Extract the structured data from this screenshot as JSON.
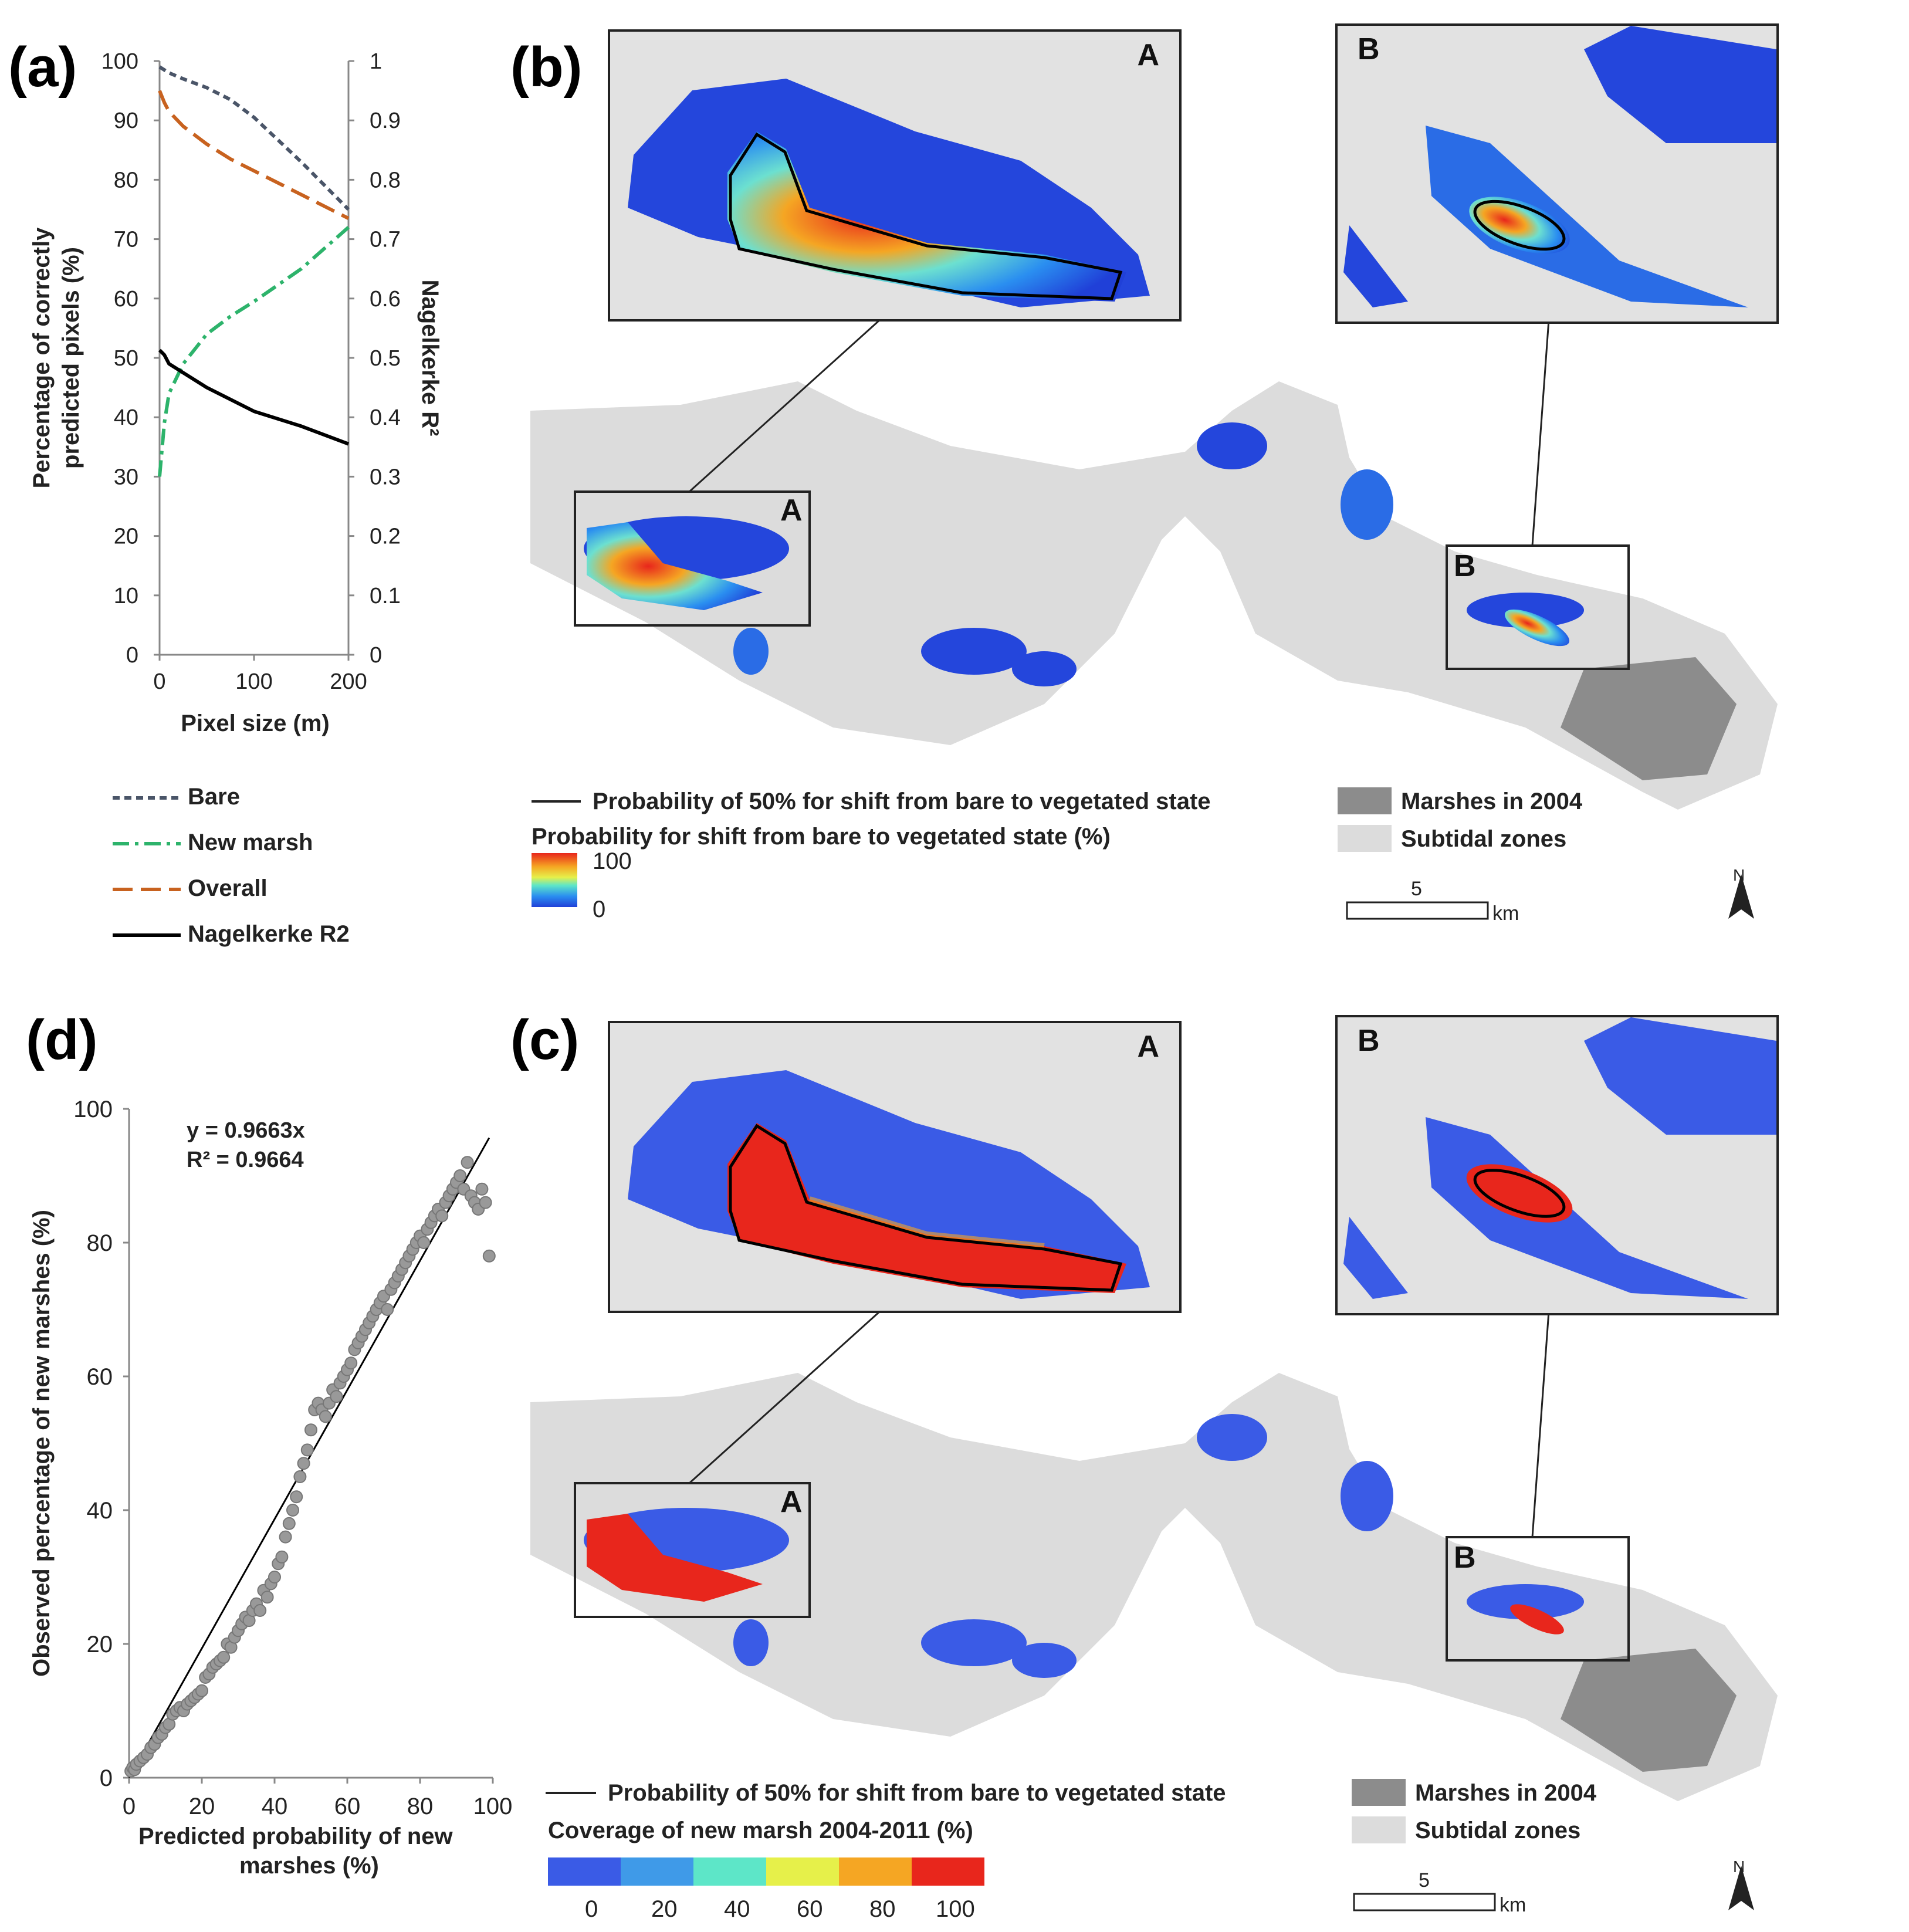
{
  "panel_a": {
    "letter": "(a)",
    "left_axis_label_line1": "Percentage of correctly",
    "left_axis_label_line2": "predicted pixels (%)",
    "right_axis_label": "Nagelkerke R²",
    "x_axis_label": "Pixel size (m)",
    "legend": [
      {
        "label": "Bare",
        "color": "#4a5568",
        "style": "dashed-short"
      },
      {
        "label": "New marsh",
        "color": "#2db36b",
        "style": "dash-dot"
      },
      {
        "label": "Overall",
        "color": "#c8621f",
        "style": "dashed-long"
      },
      {
        "label": "Nagelkerke R2",
        "color": "#000000",
        "style": "solid"
      }
    ]
  },
  "panel_b": {
    "letter": "(b)",
    "inset_a_label": "A",
    "inset_b_label": "B",
    "box_a_label": "A",
    "box_b_label": "B",
    "legend_line_label": "Probability of 50% for shift from bare to vegetated state",
    "legend_ramp_title": "Probability for shift from bare to vegetated state (%)",
    "ramp_max": "100",
    "ramp_min": "0",
    "marsh_label": "Marshes in 2004",
    "subtidal_label": "Subtidal zones",
    "scale_value": "5",
    "scale_unit": "km",
    "north": "N"
  },
  "panel_c": {
    "letter": "(c)",
    "inset_a_label": "A",
    "inset_b_label": "B",
    "box_a_label": "A",
    "box_b_label": "B",
    "legend_line_label": "Probability of 50% for shift from bare to vegetated state",
    "legend_ramp_title": "Coverage of new marsh 2004-2011 (%)",
    "class_labels": [
      "0",
      "20",
      "40",
      "60",
      "80",
      "100"
    ],
    "class_colors": [
      "#3a5be6",
      "#3f9ae8",
      "#5de6c8",
      "#e6f04a",
      "#f5a623",
      "#e8261c"
    ],
    "marsh_label": "Marshes in 2004",
    "subtidal_label": "Subtidal zones",
    "scale_value": "5",
    "scale_unit": "km",
    "north": "N"
  },
  "panel_d": {
    "letter": "(d)",
    "equation": "y = 0.9663x",
    "r2": "R² = 0.9664",
    "y_axis_label": "Observed percentage of new marshes (%)",
    "x_axis_label_line1": "Predicted probability of new",
    "x_axis_label_line2": "marshes (%)"
  },
  "chart_data": [
    {
      "type": "line",
      "id": "panel-a",
      "x": [
        0,
        5,
        10,
        25,
        50,
        75,
        100,
        150,
        200
      ],
      "xlim": [
        0,
        200
      ],
      "xticks": [
        "0",
        "100",
        "200"
      ],
      "xtick_values": [
        0,
        100,
        200
      ],
      "ylim_left": [
        0,
        100
      ],
      "yticks_left": [
        "0",
        "10",
        "20",
        "30",
        "40",
        "50",
        "60",
        "70",
        "80",
        "90",
        "100"
      ],
      "ylim_right": [
        0,
        1
      ],
      "yticks_right": [
        "0",
        "0.1",
        "0.2",
        "0.3",
        "0.4",
        "0.5",
        "0.6",
        "0.7",
        "0.8",
        "0.9",
        "1"
      ],
      "xlabel": "Pixel size (m)",
      "ylabel": "Percentage of correctly predicted pixels (%)",
      "ylabel_right": "Nagelkerke R²",
      "series": [
        {
          "name": "Bare",
          "axis": "left",
          "values": [
            99,
            98.5,
            98,
            97,
            95.5,
            93.5,
            90.5,
            83,
            75
          ]
        },
        {
          "name": "New marsh",
          "axis": "left",
          "values": [
            30,
            39,
            44,
            49,
            54,
            57,
            59.5,
            65,
            72
          ]
        },
        {
          "name": "Overall",
          "axis": "left",
          "values": [
            95,
            93,
            91.5,
            89,
            86,
            83.5,
            81.5,
            77.5,
            73.5
          ]
        },
        {
          "name": "Nagelkerke R2",
          "axis": "right",
          "values": [
            0.513,
            0.505,
            0.49,
            0.475,
            0.45,
            0.43,
            0.41,
            0.385,
            0.355
          ]
        }
      ]
    },
    {
      "type": "scatter",
      "id": "panel-d",
      "xlim": [
        0,
        100
      ],
      "ylim": [
        0,
        100
      ],
      "xticks": [
        "0",
        "20",
        "40",
        "60",
        "80",
        "100"
      ],
      "yticks": [
        "0",
        "20",
        "40",
        "60",
        "80",
        "100"
      ],
      "xlabel": "Predicted probability of new marshes (%)",
      "ylabel": "Observed percentage of new marshes (%)",
      "trendline": {
        "slope": 0.9663,
        "x_range": [
          0,
          99
        ]
      },
      "points": [
        [
          0.5,
          1
        ],
        [
          1,
          1.5
        ],
        [
          1.5,
          1.2
        ],
        [
          2,
          2
        ],
        [
          3,
          2.5
        ],
        [
          4,
          3
        ],
        [
          5,
          3.5
        ],
        [
          6,
          4.5
        ],
        [
          7,
          5
        ],
        [
          8,
          6
        ],
        [
          9,
          6.5
        ],
        [
          10,
          7.5
        ],
        [
          11,
          8
        ],
        [
          12,
          9.5
        ],
        [
          13,
          10
        ],
        [
          14,
          10.5
        ],
        [
          15,
          10
        ],
        [
          16,
          11
        ],
        [
          17,
          11.5
        ],
        [
          18,
          12
        ],
        [
          19,
          12.5
        ],
        [
          20,
          13
        ],
        [
          21,
          15
        ],
        [
          22,
          15.5
        ],
        [
          23,
          16.5
        ],
        [
          24,
          17
        ],
        [
          25,
          17.5
        ],
        [
          26,
          18
        ],
        [
          27,
          20
        ],
        [
          28,
          19.5
        ],
        [
          29,
          21
        ],
        [
          30,
          22
        ],
        [
          31,
          23
        ],
        [
          32,
          24
        ],
        [
          33,
          23.5
        ],
        [
          34,
          25
        ],
        [
          35,
          26
        ],
        [
          36,
          25
        ],
        [
          37,
          28
        ],
        [
          38,
          27
        ],
        [
          39,
          29
        ],
        [
          40,
          30
        ],
        [
          41,
          32
        ],
        [
          42,
          33
        ],
        [
          43,
          36
        ],
        [
          44,
          38
        ],
        [
          45,
          40
        ],
        [
          46,
          42
        ],
        [
          47,
          45
        ],
        [
          48,
          47
        ],
        [
          49,
          49
        ],
        [
          50,
          52
        ],
        [
          51,
          55
        ],
        [
          52,
          56
        ],
        [
          53,
          55
        ],
        [
          54,
          54
        ],
        [
          55,
          56
        ],
        [
          56,
          58
        ],
        [
          57,
          57
        ],
        [
          58,
          59
        ],
        [
          59,
          60
        ],
        [
          60,
          61
        ],
        [
          61,
          62
        ],
        [
          62,
          64
        ],
        [
          63,
          65
        ],
        [
          64,
          66
        ],
        [
          65,
          67
        ],
        [
          66,
          68
        ],
        [
          67,
          69
        ],
        [
          68,
          70
        ],
        [
          69,
          71
        ],
        [
          70,
          72
        ],
        [
          71,
          70
        ],
        [
          72,
          73
        ],
        [
          73,
          74
        ],
        [
          74,
          75
        ],
        [
          75,
          76
        ],
        [
          76,
          77
        ],
        [
          77,
          78
        ],
        [
          78,
          79
        ],
        [
          79,
          80
        ],
        [
          80,
          81
        ],
        [
          81,
          80
        ],
        [
          82,
          82
        ],
        [
          83,
          83
        ],
        [
          84,
          84
        ],
        [
          85,
          85
        ],
        [
          86,
          84
        ],
        [
          87,
          86
        ],
        [
          88,
          87
        ],
        [
          89,
          88
        ],
        [
          90,
          89
        ],
        [
          91,
          90
        ],
        [
          92,
          88
        ],
        [
          93,
          92
        ],
        [
          94,
          87
        ],
        [
          95,
          86
        ],
        [
          96,
          85
        ],
        [
          97,
          88
        ],
        [
          98,
          86
        ],
        [
          99,
          78
        ]
      ]
    }
  ]
}
